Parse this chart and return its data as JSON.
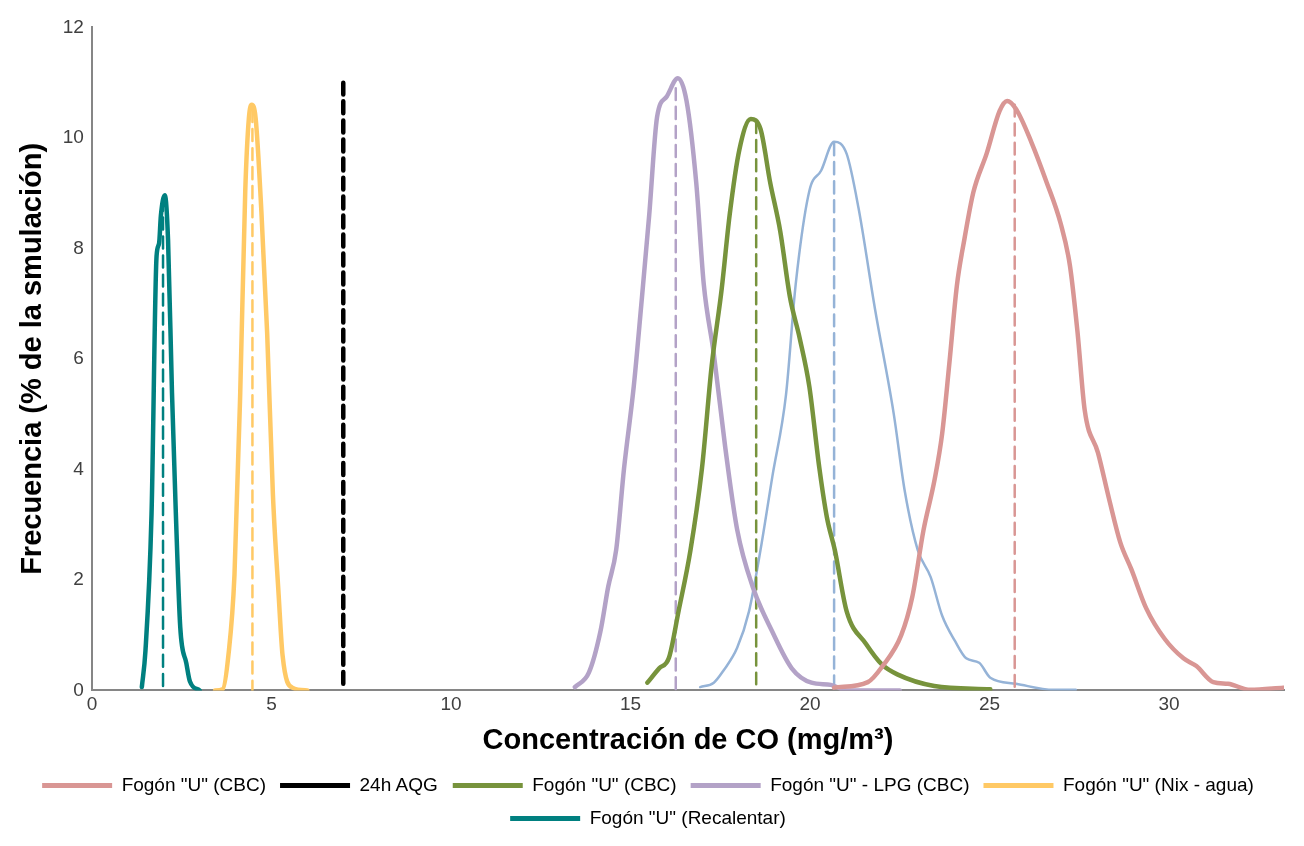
{
  "chart_data": {
    "type": "line",
    "xlabel": "Concentración de CO (mg/m³)",
    "ylabel": "Frecuencia (% de la smulación)",
    "xlim": [
      0,
      33.2
    ],
    "xticks": [
      0,
      5,
      10,
      15,
      20,
      25,
      30
    ],
    "ylim": [
      0,
      12
    ],
    "yticks": [
      0,
      2,
      4,
      6,
      8,
      10,
      12
    ],
    "grid": false,
    "legend": "bottom",
    "marker": "none",
    "line_style": "solid",
    "series": [
      {
        "name": "Fogón \"U\" (CBC)",
        "color": "#d99694",
        "x": [
          20.67,
          21.61,
          22.02,
          22.54,
          22.85,
          23.16,
          23.47,
          23.68,
          23.88,
          24.09,
          24.3,
          24.55,
          24.92,
          25.28,
          25.49,
          25.74,
          26.16,
          26.57,
          26.98,
          27.24,
          27.45,
          27.65,
          28.02,
          28.33,
          28.64,
          28.95,
          29.36,
          29.88,
          30.4,
          30.76,
          31.23,
          31.64,
          32.26,
          33.18
        ],
        "values": [
          0.05,
          0.15,
          0.44,
          1.0,
          1.7,
          2.9,
          3.82,
          4.65,
          5.92,
          7.33,
          8.17,
          9.02,
          9.72,
          10.49,
          10.67,
          10.52,
          9.93,
          9.23,
          8.45,
          7.68,
          6.48,
          5.07,
          4.3,
          3.46,
          2.68,
          2.19,
          1.49,
          0.93,
          0.58,
          0.44,
          0.15,
          0.12,
          0.01,
          0.05
        ]
      },
      {
        "name": "24h AQG",
        "color": "#000000",
        "line_style": "dashed",
        "x": [
          7,
          7
        ],
        "values": [
          11,
          0
        ]
      },
      {
        "name": "Fogón \"U\" (CBC)",
        "color": "#77933c",
        "x": [
          15.47,
          15.8,
          16.07,
          16.34,
          16.67,
          16.99,
          17.26,
          17.54,
          17.76,
          18.03,
          18.35,
          18.62,
          18.89,
          19.17,
          19.44,
          19.71,
          19.98,
          20.26,
          20.47,
          20.69,
          21.02,
          21.56,
          22.0,
          22.43,
          23.46,
          25.02
        ],
        "values": [
          0.14,
          0.4,
          0.59,
          1.44,
          2.54,
          4.02,
          5.87,
          7.27,
          8.6,
          9.78,
          10.34,
          10.16,
          9.19,
          8.31,
          7.12,
          6.38,
          5.5,
          4.02,
          3.13,
          2.54,
          1.43,
          0.84,
          0.47,
          0.29,
          0.08,
          0.02
        ]
      },
      {
        "name": "Fogón \"U\" - LPG (CBC)",
        "color": "#b3a2c7",
        "x": [
          13.45,
          13.84,
          14.16,
          14.38,
          14.6,
          14.82,
          15.09,
          15.3,
          15.52,
          15.74,
          16.01,
          16.32,
          16.56,
          16.83,
          17.04,
          17.32,
          17.64,
          17.97,
          18.4,
          18.95,
          19.49,
          20.04,
          20.58,
          21.02,
          22.5
        ],
        "values": [
          0.06,
          0.32,
          1.06,
          1.88,
          2.54,
          4.02,
          5.5,
          6.98,
          8.6,
          10.38,
          10.75,
          11.08,
          10.67,
          9.19,
          7.35,
          6.09,
          4.39,
          2.91,
          1.88,
          1.06,
          0.4,
          0.14,
          0.1,
          0,
          0
        ]
      },
      {
        "name": "Fogón \"U\" (Nix - agua)",
        "color": "#ffc965",
        "x": [
          3.43,
          3.64,
          3.8,
          3.97,
          4.13,
          4.27,
          4.37,
          4.45,
          4.56,
          4.72,
          4.88,
          5.04,
          5.2,
          5.31,
          5.58,
          6.0
        ],
        "values": [
          0,
          0.02,
          0.63,
          2.09,
          5.38,
          9.04,
          10.35,
          10.6,
          10.35,
          8.66,
          6.47,
          3.55,
          1.73,
          0.63,
          0.05,
          0
        ]
      },
      {
        "name": "Fogón \"U\" (Recalentar)",
        "color": "#008080",
        "x": [
          1.39,
          1.49,
          1.66,
          1.8,
          1.87,
          1.92,
          2.03,
          2.12,
          2.23,
          2.33,
          2.46,
          2.63,
          2.73,
          3.0
        ],
        "values": [
          0.06,
          0.71,
          3.19,
          7.86,
          8.09,
          8.59,
          8.96,
          8.15,
          5.38,
          3.34,
          1.14,
          0.49,
          0.16,
          0
        ]
      },
      {
        "color": "#008080",
        "line_style": "dashed",
        "x": [
          1.98,
          1.98
        ],
        "values": [
          8.9,
          0
        ]
      },
      {
        "color": "#ffc965",
        "line_style": "dashed",
        "x": [
          4.47,
          4.47
        ],
        "values": [
          10.5,
          0
        ]
      },
      {
        "color": "#b3a2c7",
        "line_style": "dashed",
        "x": [
          16.26,
          16.26
        ],
        "values": [
          10.9,
          0
        ]
      },
      {
        "color": "#77933c",
        "line_style": "dashed",
        "x": [
          18.5,
          18.5
        ],
        "values": [
          10.3,
          0
        ]
      },
      {
        "color": "#95b3d7",
        "line_style": "dashed",
        "x": [
          20.67,
          20.67
        ],
        "values": [
          9.9,
          0
        ]
      },
      {
        "color": "#d99694",
        "line_style": "dashed",
        "x": [
          25.7,
          25.7
        ],
        "values": [
          10.6,
          0
        ]
      },
      {
        "color": "#95b3d7",
        "x": [
          16.94,
          17.32,
          17.59,
          17.97,
          18.3,
          18.62,
          18.95,
          19.33,
          19.6,
          19.98,
          20.31,
          20.67,
          21.02,
          21.35,
          21.81,
          22.33,
          22.64,
          23.0,
          23.36,
          23.68,
          24.04,
          24.35,
          24.71,
          25.02,
          25.74,
          26.78,
          27.4
        ],
        "values": [
          0.06,
          0.14,
          0.36,
          0.77,
          1.43,
          2.54,
          3.87,
          5.35,
          7.35,
          9.04,
          9.41,
          9.93,
          9.71,
          8.73,
          6.9,
          5.01,
          3.6,
          2.54,
          2.05,
          1.35,
          0.89,
          0.58,
          0.5,
          0.23,
          0.12,
          0.01,
          0.01
        ]
      }
    ]
  }
}
